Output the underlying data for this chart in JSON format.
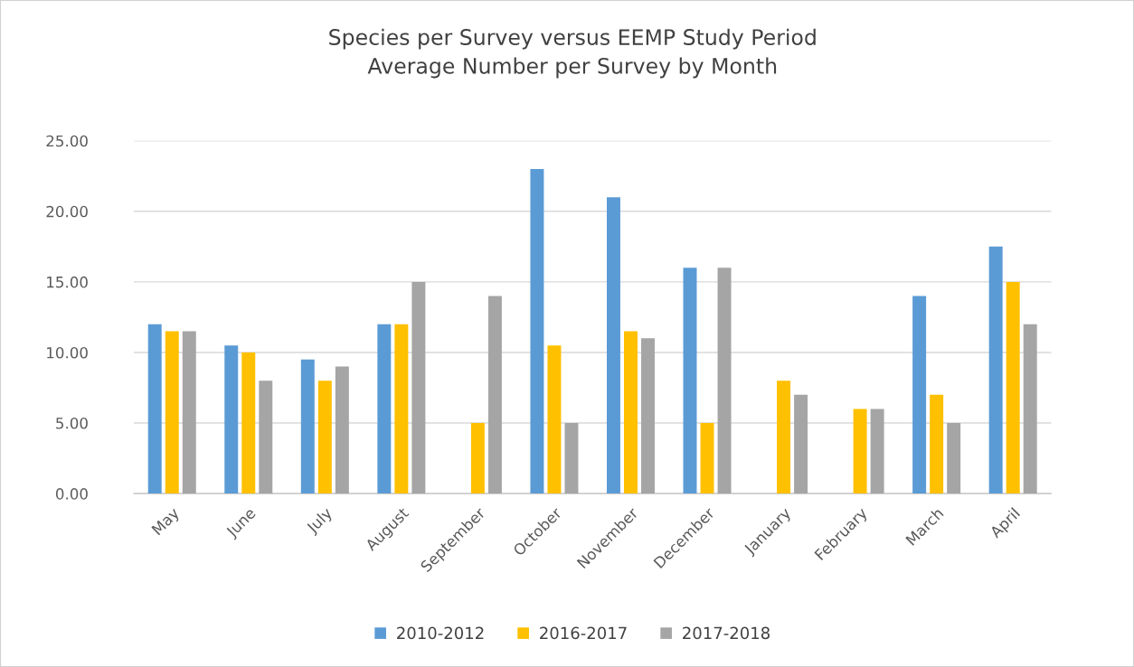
{
  "chart_data": {
    "type": "bar",
    "title": "Species per Survey versus EEMP Study Period\nAverage Number per Survey by Month",
    "categories": [
      "May",
      "June",
      "July",
      "August",
      "September",
      "October",
      "November",
      "December",
      "January",
      "February",
      "March",
      "April"
    ],
    "series": [
      {
        "name": "2010-2012",
        "color": "#5b9bd5",
        "values": [
          12,
          10.5,
          9.5,
          12,
          null,
          23,
          21,
          16,
          null,
          null,
          14,
          17.5
        ]
      },
      {
        "name": "2016-2017",
        "color": "#ffc000",
        "values": [
          11.5,
          10,
          8,
          12,
          5,
          10.5,
          11.5,
          5,
          8,
          6,
          7,
          15
        ]
      },
      {
        "name": "2017-2018",
        "color": "#a5a5a5",
        "values": [
          11.5,
          8,
          9,
          15,
          14,
          5,
          11,
          16,
          7,
          6,
          5,
          12
        ]
      }
    ],
    "ylim": [
      0,
      25
    ],
    "yticks": [
      {
        "value": 0,
        "label": "0.00"
      },
      {
        "value": 5,
        "label": "5.00"
      },
      {
        "value": 10,
        "label": "10.00"
      },
      {
        "value": 15,
        "label": "15.00"
      },
      {
        "value": 20,
        "label": "20.00"
      },
      {
        "value": 25,
        "label": "25.00"
      }
    ],
    "grid": "y",
    "legend": "bottom"
  }
}
